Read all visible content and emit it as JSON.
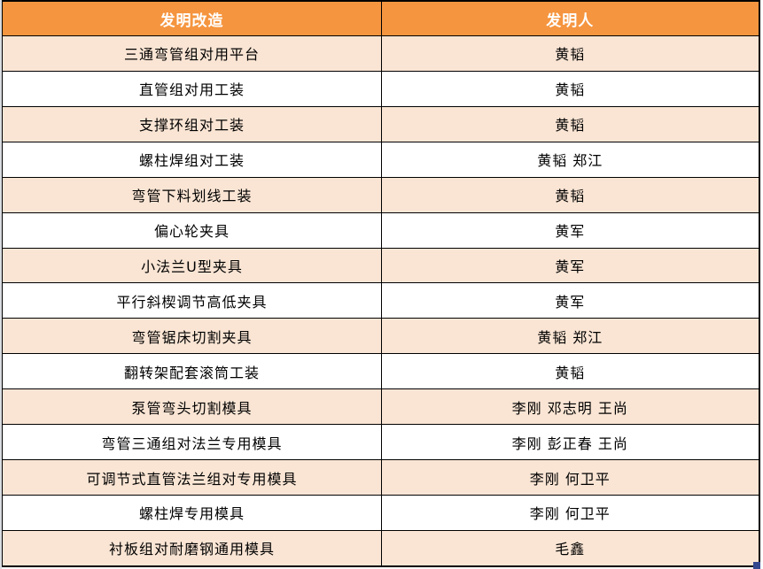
{
  "colors": {
    "header_bg": "#F5953F",
    "band_bg": "#FAE5D4",
    "border": "#000000",
    "header_text": "#FFFFFF",
    "body_text": "#000000",
    "corner_handle": "#33478F"
  },
  "table": {
    "columns": [
      {
        "label": "发明改造"
      },
      {
        "label": "发明人"
      }
    ],
    "rows": [
      {
        "invention": "三通弯管组对用平台",
        "inventors": "黄韬"
      },
      {
        "invention": "直管组对用工装",
        "inventors": "黄韬"
      },
      {
        "invention": "支撑环组对工装",
        "inventors": "黄韬"
      },
      {
        "invention": "螺柱焊组对工装",
        "inventors": "黄韬 郑江"
      },
      {
        "invention": "弯管下料划线工装",
        "inventors": "黄韬"
      },
      {
        "invention": "偏心轮夹具",
        "inventors": "黄军"
      },
      {
        "invention": "小法兰U型夹具",
        "inventors": "黄军"
      },
      {
        "invention": "平行斜楔调节高低夹具",
        "inventors": "黄军"
      },
      {
        "invention": "弯管锯床切割夹具",
        "inventors": "黄韬 郑江"
      },
      {
        "invention": "翻转架配套滚筒工装",
        "inventors": "黄韬"
      },
      {
        "invention": "泵管弯头切割模具",
        "inventors": "李刚 邓志明 王尚"
      },
      {
        "invention": "弯管三通组对法兰专用模具",
        "inventors": "李刚 彭正春 王尚"
      },
      {
        "invention": "可调节式直管法兰组对专用模具",
        "inventors": "李刚 何卫平"
      },
      {
        "invention": "螺柱焊专用模具",
        "inventors": "李刚 何卫平"
      },
      {
        "invention": "衬板组对耐磨钢通用模具",
        "inventors": "毛鑫"
      }
    ]
  },
  "chart_data": {
    "type": "table",
    "columns": [
      "发明改造",
      "发明人"
    ],
    "rows": [
      [
        "三通弯管组对用平台",
        "黄韬"
      ],
      [
        "直管组对用工装",
        "黄韬"
      ],
      [
        "支撑环组对工装",
        "黄韬"
      ],
      [
        "螺柱焊组对工装",
        "黄韬 郑江"
      ],
      [
        "弯管下料划线工装",
        "黄韬"
      ],
      [
        "偏心轮夹具",
        "黄军"
      ],
      [
        "小法兰U型夹具",
        "黄军"
      ],
      [
        "平行斜楔调节高低夹具",
        "黄军"
      ],
      [
        "弯管锯床切割夹具",
        "黄韬 郑江"
      ],
      [
        "翻转架配套滚筒工装",
        "黄韬"
      ],
      [
        "泵管弯头切割模具",
        "李刚 邓志明 王尚"
      ],
      [
        "弯管三通组对法兰专用模具",
        "李刚 彭正春 王尚"
      ],
      [
        "可调节式直管法兰组对专用模具",
        "李刚 何卫平"
      ],
      [
        "螺柱焊专用模具",
        "李刚 何卫平"
      ],
      [
        "衬板组对耐磨钢通用模具",
        "毛鑫"
      ]
    ]
  }
}
